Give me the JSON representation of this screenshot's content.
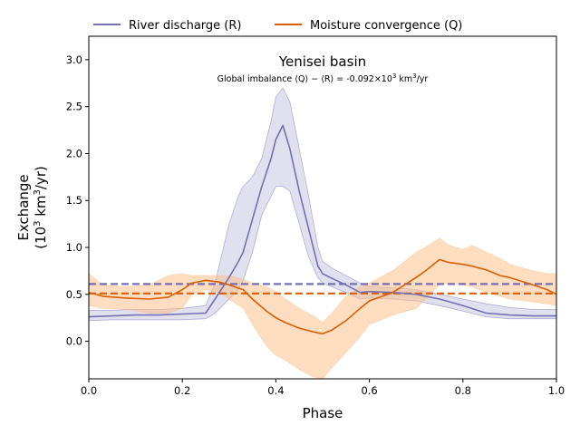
{
  "chart_data": {
    "type": "line",
    "title": "Yenisei basin",
    "subtitle": {
      "prefix": "Global imbalance ",
      "term_q": "⟨Q⟩",
      "minus": " − ",
      "term_r": "⟨R⟩",
      "mid": " = -0.092×10",
      "exp": "3",
      "unit": " km",
      "unit_exp": "3",
      "suffix": "/yr"
    },
    "xlabel": "Phase",
    "ylabel": {
      "line1": "Exchange",
      "line2_open": "(10",
      "line2_exp1": "3",
      "line2_mid": " km",
      "line2_exp2": "3",
      "line2_close": "/yr)"
    },
    "xlim": [
      0,
      1
    ],
    "ylim": [
      -0.4,
      3.25
    ],
    "xticks": [
      0.0,
      0.2,
      0.4,
      0.6,
      0.8,
      1.0
    ],
    "xtick_labels": [
      "0.0",
      "0.2",
      "0.4",
      "0.6",
      "0.8",
      "1.0"
    ],
    "yticks": [
      0.0,
      0.5,
      1.0,
      1.5,
      2.0,
      2.5,
      3.0
    ],
    "ytick_labels": [
      "0.0",
      "0.5",
      "1.0",
      "1.5",
      "2.0",
      "2.5",
      "3.0"
    ],
    "legend": {
      "placement": "above-top-left",
      "columns": 2
    },
    "series": [
      {
        "name": "River discharge (R)",
        "color": "#7570b3",
        "band_color": "#7570b3",
        "mean": 0.61,
        "x": [
          0.0,
          0.05,
          0.1,
          0.15,
          0.2,
          0.25,
          0.27,
          0.3,
          0.32,
          0.33,
          0.35,
          0.37,
          0.39,
          0.4,
          0.415,
          0.43,
          0.45,
          0.47,
          0.49,
          0.5,
          0.52,
          0.55,
          0.58,
          0.6,
          0.65,
          0.7,
          0.75,
          0.8,
          0.85,
          0.9,
          0.95,
          1.0
        ],
        "values": [
          0.26,
          0.27,
          0.28,
          0.28,
          0.29,
          0.3,
          0.45,
          0.68,
          0.85,
          0.95,
          1.3,
          1.65,
          1.95,
          2.15,
          2.3,
          2.05,
          1.6,
          1.2,
          0.8,
          0.72,
          0.67,
          0.6,
          0.52,
          0.53,
          0.52,
          0.5,
          0.45,
          0.38,
          0.3,
          0.28,
          0.27,
          0.27
        ],
        "upper": [
          0.33,
          0.33,
          0.34,
          0.34,
          0.35,
          0.38,
          0.62,
          1.25,
          1.55,
          1.65,
          1.75,
          1.95,
          2.35,
          2.6,
          2.7,
          2.55,
          2.05,
          1.55,
          1.0,
          0.85,
          0.78,
          0.7,
          0.62,
          0.58,
          0.57,
          0.55,
          0.5,
          0.45,
          0.4,
          0.36,
          0.34,
          0.34
        ],
        "lower": [
          0.22,
          0.23,
          0.23,
          0.23,
          0.23,
          0.24,
          0.3,
          0.45,
          0.55,
          0.65,
          0.95,
          1.35,
          1.55,
          1.65,
          1.65,
          1.6,
          1.25,
          0.9,
          0.68,
          0.62,
          0.58,
          0.52,
          0.45,
          0.46,
          0.45,
          0.43,
          0.38,
          0.32,
          0.26,
          0.24,
          0.24,
          0.24
        ]
      },
      {
        "name": "Moisture convergence (Q)",
        "color": "#d95f02",
        "band_color": "#fdbb84",
        "mean": 0.51,
        "x": [
          0.0,
          0.03,
          0.08,
          0.13,
          0.17,
          0.2,
          0.22,
          0.25,
          0.28,
          0.3,
          0.33,
          0.35,
          0.38,
          0.4,
          0.42,
          0.45,
          0.48,
          0.5,
          0.52,
          0.55,
          0.58,
          0.6,
          0.65,
          0.7,
          0.72,
          0.75,
          0.77,
          0.8,
          0.82,
          0.85,
          0.88,
          0.9,
          0.95,
          0.98,
          1.0
        ],
        "values": [
          0.52,
          0.48,
          0.46,
          0.45,
          0.47,
          0.55,
          0.62,
          0.65,
          0.63,
          0.6,
          0.55,
          0.45,
          0.32,
          0.25,
          0.2,
          0.14,
          0.1,
          0.08,
          0.12,
          0.22,
          0.35,
          0.43,
          0.52,
          0.68,
          0.75,
          0.87,
          0.84,
          0.82,
          0.8,
          0.76,
          0.7,
          0.68,
          0.6,
          0.55,
          0.5
        ],
        "upper": [
          0.72,
          0.6,
          0.58,
          0.6,
          0.7,
          0.72,
          0.7,
          0.7,
          0.7,
          0.7,
          0.66,
          0.62,
          0.58,
          0.53,
          0.45,
          0.35,
          0.27,
          0.2,
          0.3,
          0.48,
          0.58,
          0.62,
          0.75,
          0.95,
          1.0,
          1.1,
          1.02,
          0.98,
          1.02,
          0.95,
          0.88,
          0.82,
          0.75,
          0.72,
          0.72
        ],
        "lower": [
          0.38,
          0.35,
          0.34,
          0.3,
          0.3,
          0.35,
          0.5,
          0.55,
          0.52,
          0.45,
          0.35,
          0.18,
          -0.05,
          -0.15,
          -0.2,
          -0.3,
          -0.38,
          -0.4,
          -0.28,
          -0.12,
          0.05,
          0.18,
          0.28,
          0.35,
          0.45,
          0.6,
          0.62,
          0.6,
          0.58,
          0.52,
          0.48,
          0.45,
          0.42,
          0.4,
          0.38
        ]
      }
    ]
  }
}
